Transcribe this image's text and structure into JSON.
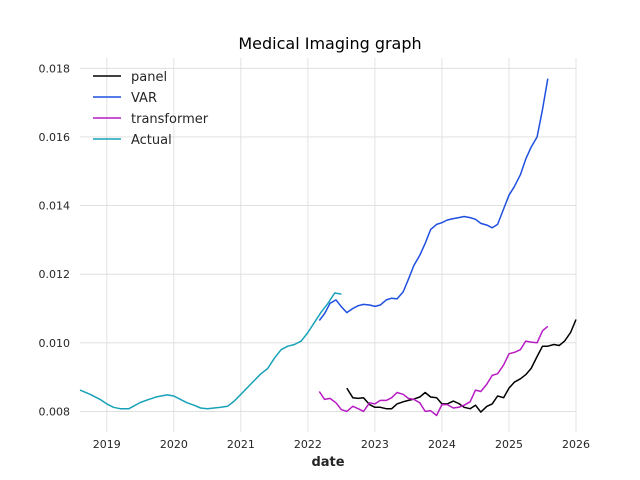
{
  "chart_data": {
    "type": "line",
    "title": "Medical Imaging graph",
    "xlabel": "date",
    "ylabel": "",
    "xlim": [
      2018.6,
      2026.0
    ],
    "ylim": [
      0.0074,
      0.0183
    ],
    "x_ticks": [
      2019,
      2020,
      2021,
      2022,
      2023,
      2024,
      2025,
      2026
    ],
    "x_tick_labels": [
      "2019",
      "2020",
      "2021",
      "2022",
      "2023",
      "2024",
      "2025",
      "2026"
    ],
    "y_ticks": [
      0.008,
      0.01,
      0.012,
      0.014,
      0.016,
      0.018
    ],
    "y_tick_labels": [
      "0.008",
      "0.010",
      "0.012",
      "0.014",
      "0.016",
      "0.018"
    ],
    "grid": true,
    "legend_position": "top-left",
    "series": [
      {
        "name": "panel",
        "color": "#000000",
        "x": [
          2022.58,
          2022.67,
          2022.75,
          2022.83,
          2022.92,
          2023.0,
          2023.08,
          2023.17,
          2023.25,
          2023.33,
          2023.42,
          2023.5,
          2023.58,
          2023.67,
          2023.75,
          2023.83,
          2023.92,
          2024.0,
          2024.08,
          2024.17,
          2024.25,
          2024.33,
          2024.42,
          2024.5,
          2024.58,
          2024.67,
          2024.75,
          2024.83,
          2024.92,
          2025.0,
          2025.08,
          2025.17,
          2025.25,
          2025.33,
          2025.42,
          2025.5,
          2025.58,
          2025.67,
          2025.75,
          2025.83,
          2025.92,
          2026.0
        ],
        "values": [
          0.00868,
          0.0084,
          0.00838,
          0.0084,
          0.0082,
          0.00812,
          0.00812,
          0.00808,
          0.00808,
          0.00822,
          0.00828,
          0.00832,
          0.00836,
          0.00842,
          0.00855,
          0.00842,
          0.0084,
          0.00822,
          0.00822,
          0.0083,
          0.00823,
          0.00812,
          0.00808,
          0.00818,
          0.00798,
          0.00815,
          0.00822,
          0.00845,
          0.0084,
          0.00868,
          0.00885,
          0.00895,
          0.00907,
          0.00925,
          0.0096,
          0.0099,
          0.0099,
          0.00995,
          0.00992,
          0.01005,
          0.0103,
          0.01068
        ]
      },
      {
        "name": "VAR",
        "color": "#1f4fe0",
        "x": [
          2022.17,
          2022.25,
          2022.33,
          2022.42,
          2022.5,
          2022.58,
          2022.67,
          2022.75,
          2022.83,
          2022.92,
          2023.0,
          2023.08,
          2023.17,
          2023.25,
          2023.33,
          2023.42,
          2023.5,
          2023.58,
          2023.67,
          2023.75,
          2023.83,
          2023.92,
          2024.0,
          2024.08,
          2024.17,
          2024.25,
          2024.33,
          2024.42,
          2024.5,
          2024.58,
          2024.67,
          2024.75,
          2024.83,
          2024.92,
          2025.0,
          2025.08,
          2025.17,
          2025.25,
          2025.33,
          2025.42,
          2025.5,
          2025.58
        ],
        "values": [
          0.01065,
          0.01085,
          0.01115,
          0.01125,
          0.01105,
          0.01088,
          0.011,
          0.01108,
          0.01112,
          0.0111,
          0.01106,
          0.0111,
          0.01125,
          0.0113,
          0.01128,
          0.01148,
          0.01185,
          0.01225,
          0.01255,
          0.0129,
          0.0133,
          0.01345,
          0.0135,
          0.01358,
          0.01362,
          0.01365,
          0.01368,
          0.01365,
          0.0136,
          0.01348,
          0.01343,
          0.01335,
          0.01345,
          0.0139,
          0.0143,
          0.01455,
          0.0149,
          0.01535,
          0.0157,
          0.016,
          0.0168,
          0.0177
        ]
      },
      {
        "name": "transformer",
        "color": "#b71cc4",
        "x": [
          2022.17,
          2022.25,
          2022.33,
          2022.42,
          2022.5,
          2022.58,
          2022.67,
          2022.75,
          2022.83,
          2022.92,
          2023.0,
          2023.08,
          2023.17,
          2023.25,
          2023.33,
          2023.42,
          2023.5,
          2023.58,
          2023.67,
          2023.75,
          2023.83,
          2023.92,
          2024.0,
          2024.08,
          2024.17,
          2024.25,
          2024.33,
          2024.42,
          2024.5,
          2024.58,
          2024.67,
          2024.75,
          2024.83,
          2024.92,
          2025.0,
          2025.08,
          2025.17,
          2025.25,
          2025.33,
          2025.42,
          2025.5,
          2025.58
        ],
        "values": [
          0.00858,
          0.00835,
          0.00838,
          0.00825,
          0.00805,
          0.008,
          0.00815,
          0.00808,
          0.008,
          0.00825,
          0.00822,
          0.00832,
          0.00832,
          0.0084,
          0.00855,
          0.0085,
          0.00838,
          0.00835,
          0.00825,
          0.008,
          0.00802,
          0.00788,
          0.0082,
          0.0082,
          0.0081,
          0.00812,
          0.00818,
          0.00828,
          0.00862,
          0.00858,
          0.0088,
          0.00905,
          0.0091,
          0.00935,
          0.00968,
          0.00972,
          0.0098,
          0.01005,
          0.01002,
          0.01,
          0.01035,
          0.01048
        ]
      },
      {
        "name": "Actual",
        "color": "#17a2b8",
        "x": [
          2018.6,
          2018.75,
          2018.9,
          2019.0,
          2019.1,
          2019.2,
          2019.33,
          2019.5,
          2019.6,
          2019.75,
          2019.9,
          2020.0,
          2020.1,
          2020.2,
          2020.3,
          2020.4,
          2020.5,
          2020.6,
          2020.7,
          2020.8,
          2020.9,
          2021.0,
          2021.1,
          2021.2,
          2021.3,
          2021.4,
          2021.5,
          2021.6,
          2021.7,
          2021.8,
          2021.9,
          2022.0,
          2022.1,
          2022.2,
          2022.3,
          2022.4,
          2022.5
        ],
        "values": [
          0.00862,
          0.0085,
          0.00835,
          0.00822,
          0.00812,
          0.00808,
          0.00808,
          0.00826,
          0.00833,
          0.00843,
          0.00848,
          0.00845,
          0.00835,
          0.00825,
          0.00818,
          0.0081,
          0.00808,
          0.0081,
          0.00812,
          0.00815,
          0.0083,
          0.0085,
          0.0087,
          0.0089,
          0.0091,
          0.00925,
          0.00955,
          0.0098,
          0.0099,
          0.00995,
          0.01005,
          0.0103,
          0.0106,
          0.0109,
          0.01115,
          0.01145,
          0.01142
        ]
      }
    ]
  }
}
